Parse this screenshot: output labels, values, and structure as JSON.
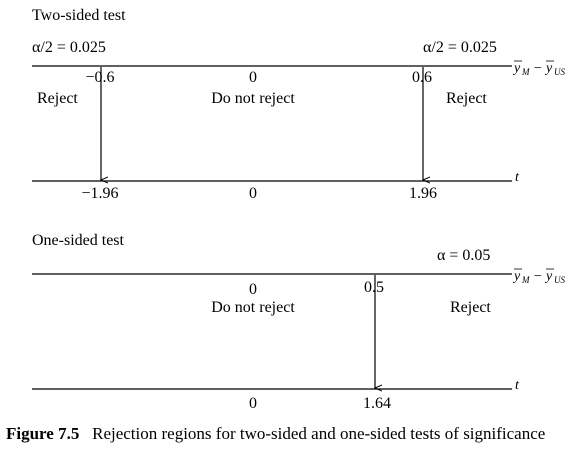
{
  "two_sided": {
    "title": "Two-sided test",
    "alpha_left": "α/2 = 0.025",
    "alpha_right": "α/2 = 0.025",
    "crit_low": "−0.6",
    "center": "0",
    "crit_high": "0.6",
    "reject_left": "Reject",
    "do_not_reject": "Do not reject",
    "reject_right": "Reject",
    "t_low": "−1.96",
    "t_center": "0",
    "t_high": "1.96"
  },
  "one_sided": {
    "title": "One-sided test",
    "alpha": "α = 0.05",
    "center": "0",
    "crit": "0.5",
    "do_not_reject": "Do not reject",
    "reject": "Reject",
    "t_center": "0",
    "t_crit": "1.64"
  },
  "axis_labels": {
    "diff_y": "y",
    "diff_sub_m": "M",
    "diff_minus": "−",
    "diff_sub_us": "US",
    "t": "t"
  },
  "caption": {
    "label": "Figure 7.5",
    "text": "Rejection regions for two-sided and one-sided tests of significance"
  }
}
